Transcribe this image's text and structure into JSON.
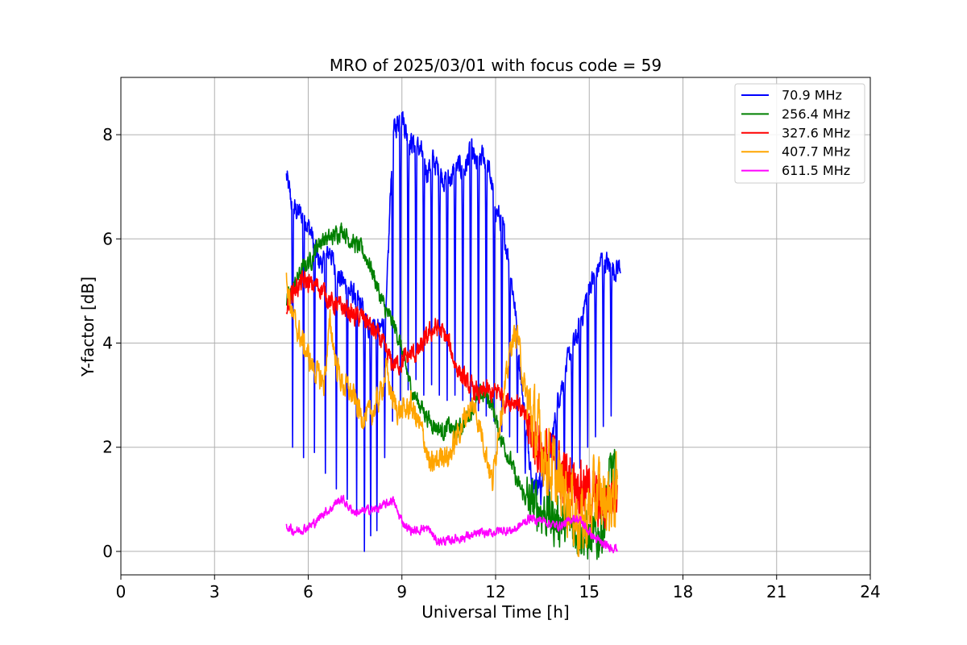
{
  "chart_data": {
    "type": "line",
    "title": "MRO of 2025/03/01 with focus code = 59",
    "xlabel": "Universal Time [h]",
    "ylabel": "Y-factor [dB]",
    "xlim": [
      0,
      24
    ],
    "ylim": [
      -0.45,
      9.1
    ],
    "xticks": [
      0,
      3,
      6,
      9,
      12,
      15,
      18,
      21,
      24
    ],
    "yticks": [
      0,
      2,
      4,
      6,
      8
    ],
    "grid": true,
    "legend_position": "top-right",
    "series": [
      {
        "name": " 70.9 MHz",
        "color": "#0000ff",
        "x": [
          5.3,
          5.5,
          5.7,
          5.9,
          6.1,
          6.3,
          6.5,
          6.7,
          6.9,
          7.1,
          7.3,
          7.5,
          7.7,
          7.9,
          8.1,
          8.3,
          8.5,
          8.7,
          8.9,
          9.0,
          9.2,
          9.4,
          9.6,
          9.8,
          10.0,
          10.2,
          10.4,
          10.6,
          10.8,
          11.0,
          11.2,
          11.4,
          11.6,
          11.8,
          12.0,
          12.2,
          12.4,
          12.6,
          12.8,
          13.0,
          13.2,
          13.4,
          13.6,
          13.8,
          14.0,
          14.2,
          14.4,
          14.6,
          14.8,
          15.0,
          15.2,
          15.4,
          15.6,
          15.8,
          16.0
        ],
        "y": [
          7.2,
          6.6,
          6.5,
          6.4,
          6.1,
          5.6,
          5.5,
          5.8,
          5.3,
          5.2,
          5.0,
          4.9,
          4.7,
          4.3,
          4.4,
          4.2,
          4.6,
          8.0,
          8.3,
          8.4,
          7.9,
          7.8,
          7.7,
          7.3,
          7.5,
          7.3,
          7.1,
          7.2,
          7.4,
          7.3,
          7.7,
          7.4,
          7.6,
          7.3,
          6.6,
          6.3,
          5.7,
          4.8,
          3.4,
          2.2,
          1.4,
          1.3,
          1.6,
          2.1,
          2.9,
          3.4,
          3.8,
          4.1,
          4.6,
          5.1,
          5.3,
          5.6,
          5.5,
          5.4,
          5.5
        ],
        "dips_x": [
          5.5,
          5.85,
          6.2,
          6.55,
          6.9,
          7.25,
          7.55,
          7.8,
          8.0,
          8.2,
          8.45,
          8.7,
          8.95,
          9.2,
          9.45,
          9.7,
          9.95,
          10.2,
          10.45,
          10.7,
          10.95,
          11.2,
          11.45,
          11.7,
          11.95,
          12.2,
          12.45,
          12.7,
          12.95,
          13.2,
          13.45,
          13.7,
          13.95,
          14.2,
          14.45,
          14.7,
          14.95,
          15.2,
          15.45,
          15.7
        ],
        "dips_y": [
          2.0,
          1.8,
          1.9,
          1.5,
          1.2,
          1.0,
          0.8,
          0.0,
          0.3,
          0.4,
          1.8,
          2.5,
          2.9,
          3.1,
          3.3,
          3.0,
          3.2,
          3.0,
          2.9,
          3.0,
          2.9,
          2.8,
          2.7,
          2.6,
          2.5,
          2.3,
          2.2,
          1.9,
          1.5,
          1.1,
          0.9,
          0.8,
          1.0,
          1.1,
          1.3,
          1.6,
          2.0,
          2.2,
          2.4,
          2.6
        ]
      },
      {
        "name": "256.4 MHz",
        "color": "#008000",
        "x": [
          5.3,
          5.5,
          5.7,
          5.9,
          6.1,
          6.3,
          6.5,
          6.7,
          6.9,
          7.1,
          7.3,
          7.5,
          7.7,
          7.9,
          8.1,
          8.3,
          8.5,
          8.7,
          8.9,
          9.1,
          9.3,
          9.5,
          9.7,
          9.9,
          10.1,
          10.3,
          10.5,
          10.7,
          10.9,
          11.1,
          11.3,
          11.5,
          11.7,
          11.9,
          12.1,
          12.3,
          12.5,
          12.7,
          12.9,
          13.1,
          13.3,
          13.5,
          13.7,
          13.9,
          14.1,
          14.3,
          14.5,
          14.7,
          14.9,
          15.1,
          15.3,
          15.5,
          15.7,
          15.9
        ],
        "y": [
          4.8,
          5.0,
          5.3,
          5.5,
          5.6,
          5.9,
          6.0,
          6.0,
          6.1,
          6.2,
          6.0,
          5.9,
          5.8,
          5.6,
          5.3,
          4.9,
          4.6,
          4.4,
          4.1,
          3.6,
          3.1,
          2.9,
          2.7,
          2.5,
          2.4,
          2.3,
          2.4,
          2.3,
          2.4,
          2.6,
          2.8,
          3.0,
          3.0,
          2.8,
          2.3,
          2.0,
          1.7,
          1.3,
          1.1,
          0.9,
          0.9,
          0.8,
          0.7,
          0.6,
          0.6,
          0.5,
          0.5,
          0.4,
          0.3,
          0.2,
          0.3,
          0.6,
          1.6,
          1.2
        ]
      },
      {
        "name": "327.6 MHz",
        "color": "#ff0000",
        "x": [
          5.3,
          5.5,
          5.7,
          5.9,
          6.1,
          6.3,
          6.5,
          6.7,
          6.9,
          7.1,
          7.3,
          7.5,
          7.7,
          7.9,
          8.1,
          8.3,
          8.5,
          8.7,
          8.9,
          9.1,
          9.3,
          9.5,
          9.7,
          9.9,
          10.1,
          10.3,
          10.5,
          10.7,
          10.9,
          11.1,
          11.3,
          11.5,
          11.7,
          11.9,
          12.1,
          12.3,
          12.5,
          12.7,
          12.9,
          13.1,
          13.3,
          13.5,
          13.7,
          13.9,
          14.1,
          14.3,
          14.5,
          14.7,
          14.9,
          15.1,
          15.3,
          15.5,
          15.7,
          15.9
        ],
        "y": [
          4.7,
          5.0,
          5.1,
          5.2,
          5.1,
          5.1,
          5.0,
          4.8,
          4.7,
          4.7,
          4.6,
          4.5,
          4.5,
          4.4,
          4.2,
          4.1,
          3.8,
          3.6,
          3.6,
          3.7,
          3.8,
          3.8,
          4.0,
          4.2,
          4.3,
          4.2,
          4.0,
          3.6,
          3.4,
          3.2,
          3.1,
          3.0,
          3.1,
          3.0,
          3.1,
          2.9,
          2.9,
          2.9,
          2.6,
          2.3,
          2.1,
          1.9,
          1.8,
          1.7,
          1.5,
          1.4,
          1.4,
          1.3,
          1.2,
          1.1,
          0.9,
          0.9,
          1.1,
          1.3
        ]
      },
      {
        "name": "407.7 MHz",
        "color": "#ffa500",
        "x": [
          5.3,
          5.5,
          5.7,
          5.9,
          6.1,
          6.3,
          6.5,
          6.7,
          6.9,
          7.1,
          7.3,
          7.5,
          7.7,
          7.9,
          8.1,
          8.3,
          8.5,
          8.7,
          8.9,
          9.1,
          9.3,
          9.5,
          9.7,
          9.9,
          10.1,
          10.3,
          10.5,
          10.7,
          10.9,
          11.1,
          11.3,
          11.5,
          11.7,
          11.9,
          12.1,
          12.3,
          12.5,
          12.7,
          12.9,
          13.1,
          13.3,
          13.5,
          13.7,
          13.9,
          14.1,
          14.3,
          14.5,
          14.7,
          14.9,
          15.1,
          15.3,
          15.5,
          15.7,
          15.9
        ],
        "y": [
          5.2,
          4.5,
          4.2,
          3.9,
          3.6,
          3.4,
          3.2,
          4.4,
          3.6,
          3.2,
          3.1,
          2.9,
          2.6,
          2.6,
          2.7,
          3.0,
          3.5,
          2.9,
          2.7,
          2.7,
          2.8,
          2.5,
          2.2,
          1.6,
          1.7,
          1.9,
          1.8,
          2.1,
          2.4,
          2.7,
          2.8,
          2.4,
          1.9,
          1.3,
          2.4,
          3.1,
          4.0,
          4.2,
          3.2,
          2.7,
          2.3,
          2.0,
          1.7,
          1.4,
          1.2,
          1.1,
          0.8,
          0.5,
          0.6,
          0.9,
          1.1,
          1.0,
          1.0,
          1.1
        ]
      },
      {
        "name": "611.5 MHz",
        "color": "#ff00ff",
        "x": [
          5.3,
          5.5,
          5.7,
          5.9,
          6.1,
          6.3,
          6.5,
          6.7,
          6.9,
          7.1,
          7.3,
          7.5,
          7.7,
          7.9,
          8.1,
          8.3,
          8.5,
          8.7,
          8.9,
          9.1,
          9.3,
          9.5,
          9.7,
          9.9,
          10.1,
          10.3,
          10.5,
          10.7,
          10.9,
          11.1,
          11.3,
          11.5,
          11.7,
          11.9,
          12.1,
          12.3,
          12.5,
          12.7,
          12.9,
          13.1,
          13.3,
          13.5,
          13.7,
          13.9,
          14.1,
          14.3,
          14.5,
          14.7,
          14.9,
          15.1,
          15.3,
          15.5,
          15.7,
          15.9
        ],
        "y": [
          0.5,
          0.4,
          0.4,
          0.45,
          0.5,
          0.6,
          0.75,
          0.8,
          0.95,
          1.0,
          0.85,
          0.75,
          0.75,
          0.8,
          0.8,
          0.85,
          0.9,
          1.0,
          0.7,
          0.5,
          0.4,
          0.4,
          0.45,
          0.4,
          0.2,
          0.2,
          0.2,
          0.25,
          0.25,
          0.3,
          0.3,
          0.35,
          0.35,
          0.35,
          0.4,
          0.4,
          0.4,
          0.45,
          0.55,
          0.65,
          0.6,
          0.6,
          0.55,
          0.5,
          0.5,
          0.55,
          0.65,
          0.6,
          0.45,
          0.3,
          0.2,
          0.1,
          0.1,
          0.05
        ]
      }
    ]
  }
}
